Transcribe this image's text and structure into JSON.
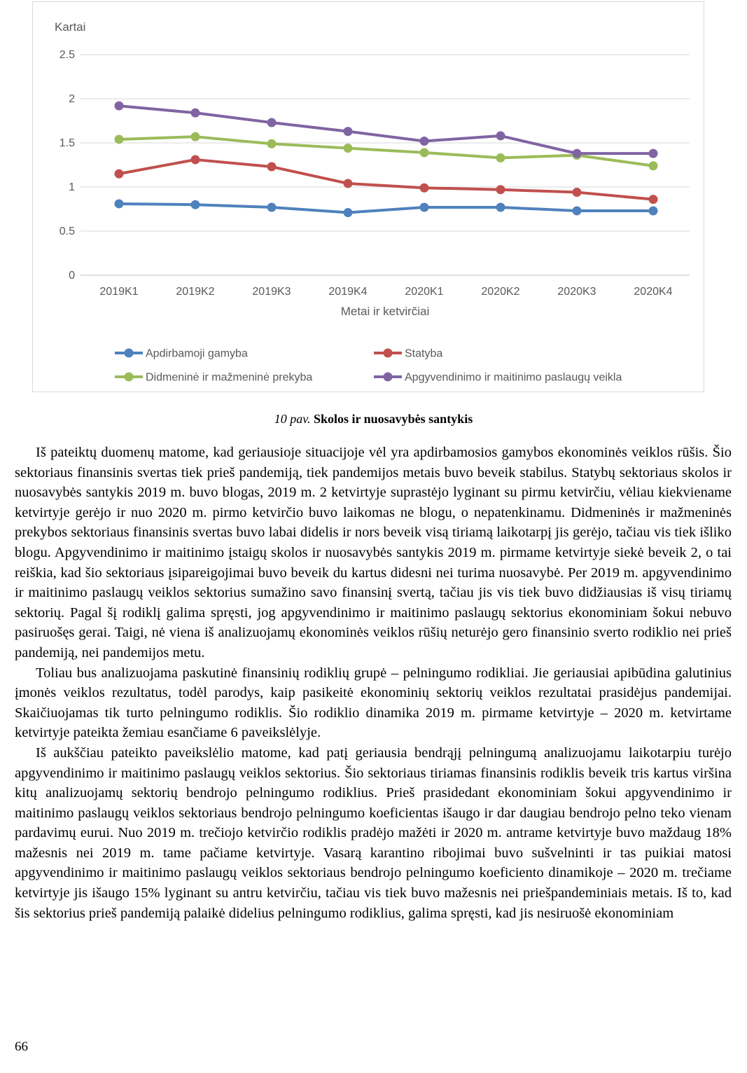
{
  "page": {
    "number": "66"
  },
  "figure": {
    "caption_prefix": "10 pav.",
    "caption_title": "Skolos ir nuosavybės santykis"
  },
  "chart_data": {
    "type": "line",
    "title": "",
    "ylabel": "Kartai",
    "xlabel": "Metai ir ketvirčiai",
    "categories": [
      "2019K1",
      "2019K2",
      "2019K3",
      "2019K4",
      "2020K1",
      "2020K2",
      "2020K3",
      "2020K4"
    ],
    "series": [
      {
        "name": "Apdirbamoji gamyba",
        "color": "#4F81BD",
        "values": [
          0.81,
          0.8,
          0.77,
          0.71,
          0.77,
          0.77,
          0.73,
          0.73
        ]
      },
      {
        "name": "Statyba",
        "color": "#C0504D",
        "values": [
          1.15,
          1.31,
          1.23,
          1.04,
          0.99,
          0.97,
          0.94,
          0.86
        ]
      },
      {
        "name": "Didmeninė ir mažmeninė prekyba",
        "color": "#9BBB59",
        "values": [
          1.54,
          1.57,
          1.49,
          1.44,
          1.39,
          1.33,
          1.36,
          1.24
        ]
      },
      {
        "name": "Apgyvendinimo ir maitinimo paslaugų veikla",
        "color": "#8064A2",
        "values": [
          1.92,
          1.84,
          1.73,
          1.63,
          1.52,
          1.58,
          1.38,
          1.38
        ]
      }
    ],
    "ylim": [
      0,
      2.5
    ],
    "ytick_step": 0.5,
    "yticks": [
      "0",
      "0.5",
      "1",
      "1.5",
      "2",
      "2.5"
    ],
    "grid": true,
    "legend_position": "bottom",
    "axis_text_color": "#595959",
    "gridline_color": "#d9d9d9",
    "baseline_color": "#bfbfbf"
  },
  "paragraphs": [
    "Iš pateiktų duomenų matome, kad geriausioje situacijoje vėl yra apdirbamosios gamybos ekonominės veiklos rūšis. Šio sektoriaus finansinis svertas tiek prieš pandemiją, tiek pandemijos metais buvo beveik stabilus. Statybų sektoriaus skolos ir nuosavybės santykis 2019 m. buvo blogas, 2019 m. 2 ketvirtyje suprastėjo lyginant su pirmu ketvirčiu, vėliau kiekviename ketvirtyje gerėjo ir nuo 2020 m. pirmo ketvirčio buvo laikomas ne blogu, o nepatenkinamu. Didmeninės ir mažmeninės prekybos sektoriaus finansinis svertas buvo labai didelis ir nors beveik visą tiriamą laikotarpį jis gerėjo, tačiau vis tiek išliko blogu. Apgyvendinimo ir maitinimo įstaigų skolos ir nuosavybės santykis 2019 m. pirmame ketvirtyje siekė beveik 2, o tai reiškia, kad šio sektoriaus įsipareigojimai buvo beveik du kartus didesni nei turima nuosavybė. Per 2019 m. apgyvendinimo ir maitinimo paslaugų veiklos sektorius sumažino savo finansinį svertą, tačiau jis vis tiek buvo didžiausias iš visų tiriamų sektorių. Pagal šį rodiklį galima spręsti, jog apgyvendinimo ir maitinimo paslaugų sektorius ekonominiam šokui nebuvo pasiruošęs gerai. Taigi, nė viena iš analizuojamų ekonominės veiklos rūšių neturėjo gero finansinio sverto rodiklio nei prieš pandemiją, nei pandemijos metu.",
    "Toliau bus analizuojama paskutinė finansinių rodiklių grupė – pelningumo rodikliai. Jie geriausiai apibūdina galutinius įmonės veiklos rezultatus, todėl parodys, kaip pasikeitė ekonominių sektorių veiklos rezultatai prasidėjus pandemijai. Skaičiuojamas tik turto pelningumo rodiklis. Šio rodiklio dinamika 2019 m. pirmame ketvirtyje – 2020 m. ketvirtame ketvirtyje pateikta žemiau esančiame 6 paveikslėlyje.",
    "Iš aukščiau pateikto paveikslėlio matome, kad patį geriausia bendrąjį pelningumą analizuojamu laikotarpiu turėjo apgyvendinimo ir maitinimo paslaugų veiklos sektorius. Šio sektoriaus tiriamas finansinis rodiklis beveik tris kartus viršina kitų analizuojamų sektorių bendrojo pelningumo rodiklius. Prieš prasidedant ekonominiam šokui apgyvendinimo ir maitinimo paslaugų veiklos sektoriaus bendrojo pelningumo koeficientas išaugo ir dar daugiau bendrojo pelno teko vienam pardavimų eurui. Nuo 2019 m. trečiojo ketvirčio rodiklis pradėjo mažėti ir 2020 m. antrame ketvirtyje buvo maždaug 18% mažesnis nei 2019 m. tame pačiame ketvirtyje. Vasarą karantino ribojimai buvo sušvelninti ir tas puikiai matosi apgyvendinimo ir maitinimo paslaugų veiklos sektoriaus bendrojo pelningumo koeficiento dinamikoje – 2020 m. trečiame ketvirtyje jis išaugo 15% lyginant su antru ketvirčiu, tačiau vis tiek buvo mažesnis nei priešpandeminiais metais. Iš to, kad šis sektorius prieš pandemiją palaikė didelius pelningumo rodiklius, galima spręsti, kad jis nesiruošė ekonominiam"
  ]
}
